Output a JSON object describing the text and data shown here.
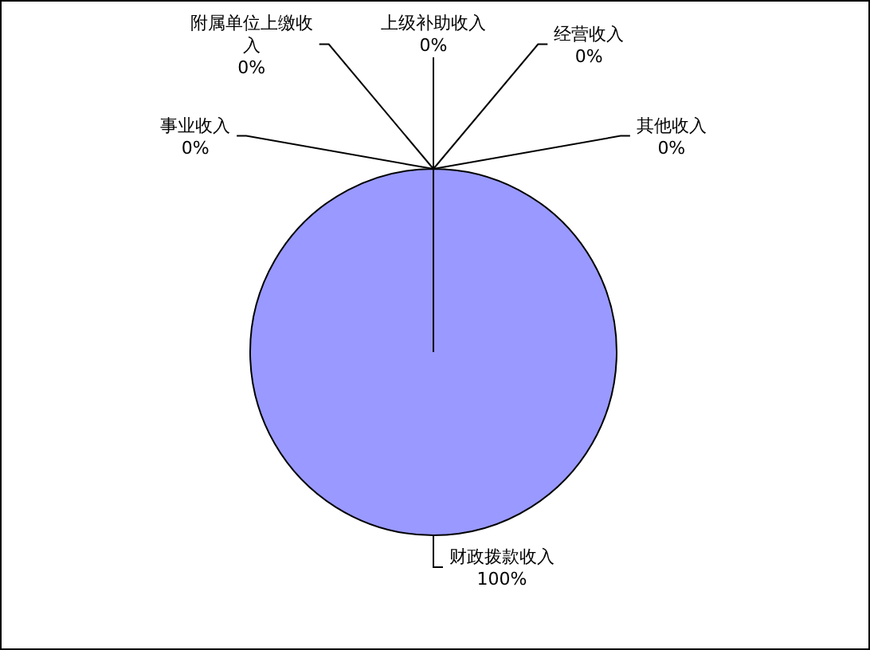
{
  "chart_data": {
    "type": "pie",
    "categories": [
      "财政拨款收入",
      "事业收入",
      "附属单位上缴收入",
      "上级补助收入",
      "经营收入",
      "其他收入"
    ],
    "values": [
      100,
      0,
      0,
      0,
      0,
      0
    ],
    "colors": [
      "#9999ff",
      "#993366",
      "#ffffcc",
      "#ccffff",
      "#660066",
      "#ff8080"
    ],
    "value_labels": [
      "100%",
      "0%",
      "0%",
      "0%",
      "0%",
      "0%"
    ]
  }
}
